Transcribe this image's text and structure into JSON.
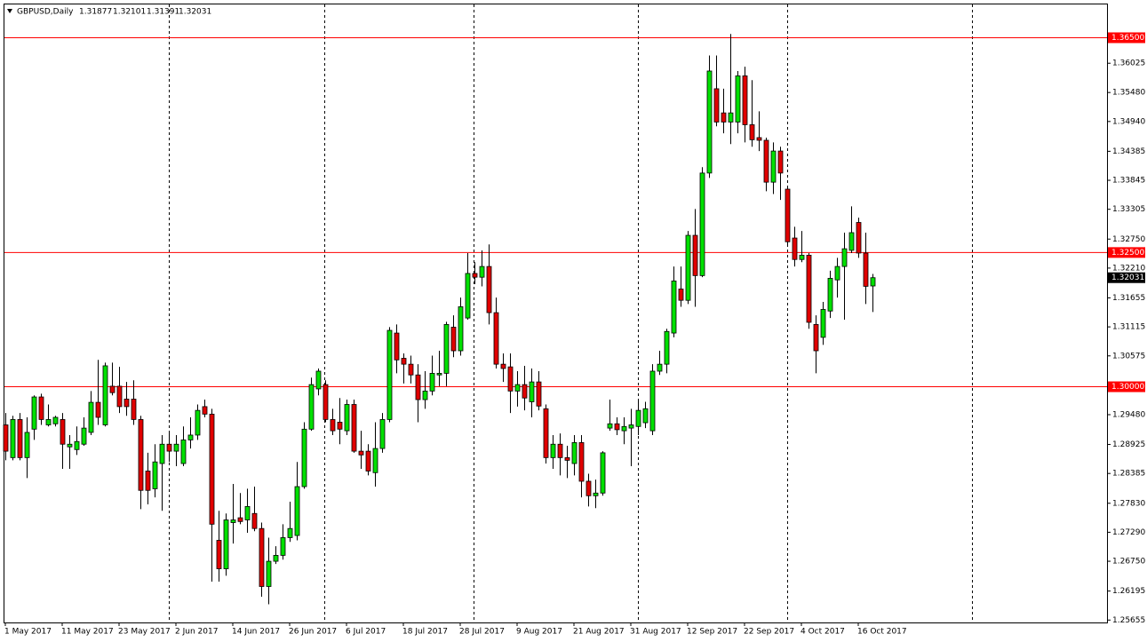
{
  "chart_data": {
    "type": "candlestick",
    "title": "GBPUSD,Daily",
    "up_color": "#00e000",
    "down_color": "#e00000",
    "hline_color": "#ff0000",
    "ylim": [
      1.2561,
      1.3712
    ],
    "yticks": [
      1.36025,
      {
        "value": 1.3548,
        "label": "1.35480"
      },
      {
        "value": 1.3494,
        "label": "1.34940"
      },
      1.34385,
      1.33845,
      1.33305,
      {
        "value": 1.3275,
        "label": "1.32750"
      },
      {
        "value": 1.3221,
        "label": "1.32210"
      },
      1.31655,
      1.31115,
      1.30575,
      {
        "value": 1.2948,
        "label": "1.29480"
      },
      1.28925,
      1.28385,
      {
        "value": 1.2783,
        "label": "1.27830"
      },
      {
        "value": 1.2729,
        "label": "1.27290"
      },
      {
        "value": 1.2675,
        "label": "1.26750"
      },
      1.26195,
      1.25655
    ],
    "hlines": [
      {
        "value": 1.365,
        "label": "1.36500"
      },
      {
        "value": 1.325,
        "label": "1.32500"
      },
      {
        "value": 1.3,
        "label": "1.30000"
      }
    ],
    "categories": [
      "1 May 2017",
      null,
      null,
      null,
      null,
      null,
      null,
      null,
      "11 May 2017",
      null,
      null,
      null,
      null,
      null,
      null,
      null,
      "23 May 2017",
      null,
      null,
      null,
      null,
      null,
      null,
      null,
      "2 Jun 2017",
      null,
      null,
      null,
      null,
      null,
      null,
      null,
      "14 Jun 2017",
      null,
      null,
      null,
      null,
      null,
      null,
      null,
      "26 Jun 2017",
      null,
      null,
      null,
      null,
      null,
      null,
      null,
      "6 Jul 2017",
      null,
      null,
      null,
      null,
      null,
      null,
      null,
      "18 Jul 2017",
      null,
      null,
      null,
      null,
      null,
      null,
      null,
      "28 Jul 2017",
      null,
      null,
      null,
      null,
      null,
      null,
      null,
      "9 Aug 2017",
      null,
      null,
      null,
      null,
      null,
      null,
      null,
      "21 Aug 2017",
      null,
      null,
      null,
      null,
      null,
      null,
      null,
      "31 Aug 2017",
      null,
      null,
      null,
      null,
      null,
      null,
      null,
      "12 Sep 2017",
      null,
      null,
      null,
      null,
      null,
      null,
      null,
      "22 Sep 2017",
      null,
      null,
      null,
      null,
      null,
      null,
      null,
      "4 Oct 2017",
      null,
      null,
      null,
      null,
      null,
      null,
      null,
      "16 Oct 2017",
      null,
      null
    ],
    "open": [
      1.2929,
      1.2868,
      1.2939,
      1.2868,
      1.2921,
      1.2981,
      1.2929,
      1.2931,
      1.2939,
      1.2888,
      1.2883,
      1.2893,
      1.2915,
      1.2971,
      1.2929,
      1.3001,
      1.3001,
      1.2977,
      1.2977,
      1.2939,
      1.2843,
      1.281,
      1.2857,
      1.2893,
      1.288,
      1.2857,
      1.2901,
      1.291,
      1.2963,
      1.2949,
      1.2714,
      1.2661,
      1.2747,
      1.2756,
      1.2752,
      1.2764,
      1.2736,
      1.2628,
      1.2675,
      1.2686,
      1.2719,
      1.2723,
      1.2814,
      1.2921,
      1.2996,
      1.3004,
      1.2939,
      1.2934,
      1.2918,
      1.2967,
      1.288,
      1.288,
      1.284,
      1.2885,
      1.2939,
      1.31,
      1.3053,
      1.3042,
      1.3022,
      1.2976,
      1.2992,
      1.3022,
      1.3025,
      1.3111,
      1.3067,
      1.3128,
      1.3211,
      1.3204,
      1.3224,
      1.3138,
      1.3042,
      1.3037,
      1.2992,
      1.3004,
      1.2972,
      1.3009,
      1.2959,
      1.2868,
      1.2893,
      1.2868,
      1.2857,
      1.2896,
      1.2824,
      1.2797,
      1.2802,
      1.2923,
      1.2931,
      1.2918,
      1.2923,
      1.2926,
      1.2933,
      1.2918,
      1.3029,
      1.3042,
      1.31,
      1.3182,
      1.3161,
      1.3282,
      1.3207,
      1.3398,
      1.3555,
      1.351,
      1.3493,
      1.3493,
      1.3579,
      1.3488,
      1.3464,
      1.3459,
      1.3381,
      1.3439,
      1.3368,
      1.3277,
      1.3237,
      1.3245,
      1.3116,
      1.3092,
      1.3141,
      1.3199,
      1.3224,
      1.3254,
      1.3306,
      1.3249,
      1.31877
    ],
    "high": [
      1.2951,
      1.2946,
      1.2951,
      1.2943,
      1.2984,
      1.2987,
      1.2967,
      1.2946,
      1.2951,
      1.291,
      1.2926,
      1.2943,
      1.2992,
      1.305,
      1.3045,
      1.3045,
      1.3037,
      1.3009,
      1.3012,
      1.2946,
      1.2877,
      1.2893,
      1.291,
      1.2918,
      1.291,
      1.2926,
      1.2943,
      1.2967,
      1.2976,
      1.2959,
      1.2769,
      1.2764,
      1.2819,
      1.2802,
      1.281,
      1.2814,
      1.2747,
      1.2719,
      1.2703,
      1.2744,
      1.2786,
      1.286,
      1.2934,
      1.3017,
      1.3034,
      1.3012,
      1.2959,
      1.2979,
      1.2976,
      1.2976,
      1.2918,
      1.2893,
      1.2934,
      1.2951,
      1.3111,
      1.3116,
      1.3062,
      1.3058,
      1.3042,
      1.3029,
      1.3058,
      1.3067,
      1.3121,
      1.3133,
      1.3166,
      1.3249,
      1.3232,
      1.3254,
      1.3265,
      1.3166,
      1.3062,
      1.3062,
      1.3029,
      1.3039,
      1.3034,
      1.3029,
      1.2967,
      1.291,
      1.2913,
      1.289,
      1.291,
      1.291,
      1.2838,
      1.2827,
      1.288,
      1.2976,
      1.2943,
      1.2943,
      1.2959,
      1.2976,
      1.2972,
      1.3042,
      1.3067,
      1.3108,
      1.3224,
      1.3224,
      1.329,
      1.3331,
      1.3409,
      1.3617,
      1.3617,
      1.3555,
      1.3657,
      1.3588,
      1.3596,
      1.3571,
      1.3513,
      1.3464,
      1.3455,
      1.3447,
      1.3373,
      1.3298,
      1.329,
      1.3249,
      1.3133,
      1.3158,
      1.3216,
      1.324,
      1.3287,
      1.3336,
      1.3315,
      1.3287,
      1.32101
    ],
    "low": [
      1.2863,
      1.2863,
      1.2863,
      1.283,
      1.2901,
      1.2929,
      1.2926,
      1.2926,
      1.2847,
      1.2847,
      1.2873,
      1.289,
      1.291,
      1.2929,
      1.2926,
      1.2984,
      1.2951,
      1.2946,
      1.2929,
      1.2772,
      1.2781,
      1.2794,
      1.2769,
      1.286,
      1.2852,
      1.2852,
      1.2885,
      1.2901,
      1.2943,
      1.2637,
      1.2637,
      1.2648,
      1.2708,
      1.2744,
      1.2728,
      1.2731,
      1.2609,
      1.2595,
      1.267,
      1.2678,
      1.2711,
      1.2714,
      1.281,
      1.2918,
      1.2984,
      1.2934,
      1.291,
      1.2893,
      1.291,
      1.2877,
      1.2847,
      1.2835,
      1.2814,
      1.2877,
      1.2934,
      1.3025,
      1.3006,
      1.3006,
      1.2934,
      1.2959,
      1.2984,
      1.3001,
      1.3001,
      1.3055,
      1.3058,
      1.3125,
      1.3191,
      1.3187,
      1.3116,
      1.3034,
      1.3009,
      1.2951,
      1.2963,
      1.2956,
      1.2943,
      1.2956,
      1.2857,
      1.2847,
      1.2835,
      1.283,
      1.2835,
      1.2794,
      1.2777,
      1.2774,
      1.2797,
      1.2918,
      1.291,
      1.2893,
      1.2852,
      1.291,
      1.2923,
      1.291,
      1.3022,
      1.3025,
      1.3092,
      1.3149,
      1.3154,
      1.3149,
      1.3204,
      1.3389,
      1.3485,
      1.3472,
      1.3452,
      1.3472,
      1.3455,
      1.3447,
      1.3439,
      1.3364,
      1.3359,
      1.3348,
      1.3265,
      1.3224,
      1.3232,
      1.3108,
      1.3025,
      1.3078,
      1.3128,
      1.3166,
      1.3125,
      1.3249,
      1.324,
      1.3154,
      1.31391
    ],
    "close": [
      1.288,
      1.2939,
      1.2868,
      1.2915,
      1.2981,
      1.2939,
      1.2939,
      1.2943,
      1.2893,
      1.2893,
      1.2898,
      1.2923,
      1.2971,
      1.2943,
      1.3039,
      1.2989,
      1.2963,
      1.2963,
      1.2939,
      1.2807,
      1.2807,
      1.286,
      1.2893,
      1.288,
      1.2893,
      1.2901,
      1.291,
      1.2956,
      1.2949,
      1.2744,
      1.2661,
      1.2752,
      1.2752,
      1.2749,
      1.2777,
      1.2736,
      1.2628,
      1.2675,
      1.2686,
      1.2719,
      1.2736,
      1.2814,
      1.2921,
      1.3004,
      1.3029,
      1.2939,
      1.2918,
      1.2921,
      1.2967,
      1.288,
      1.2873,
      1.2843,
      1.2885,
      1.2939,
      1.3105,
      1.305,
      1.3042,
      1.3022,
      1.2976,
      1.2992,
      1.3025,
      1.3025,
      1.3116,
      1.3067,
      1.3149,
      1.3211,
      1.3204,
      1.3224,
      1.3138,
      1.3042,
      1.3034,
      1.2992,
      1.3004,
      1.2979,
      1.3009,
      1.2964,
      1.2868,
      1.2893,
      1.2868,
      1.2863,
      1.2896,
      1.2824,
      1.2797,
      1.2802,
      1.2877,
      1.2931,
      1.292,
      1.2926,
      1.2929,
      1.2956,
      1.2959,
      1.3029,
      1.3042,
      1.3103,
      1.3197,
      1.3161,
      1.3282,
      1.3207,
      1.3398,
      1.3588,
      1.3493,
      1.3493,
      1.351,
      1.3579,
      1.3488,
      1.346,
      1.3459,
      1.3381,
      1.3439,
      1.3398,
      1.327,
      1.3237,
      1.3245,
      1.312,
      1.3067,
      1.3144,
      1.3202,
      1.3224,
      1.3257,
      1.3287,
      1.3249,
      1.3187,
      1.32031
    ]
  }
}
